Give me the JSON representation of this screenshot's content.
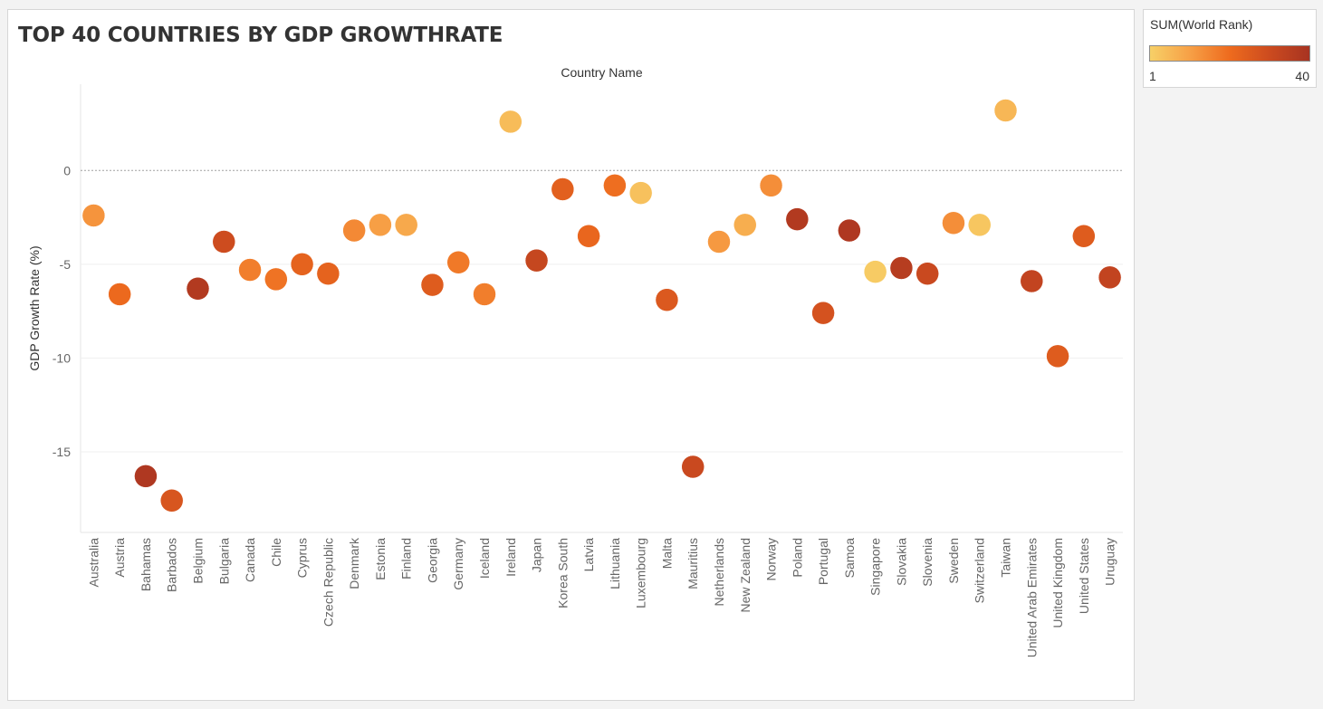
{
  "chart_data": {
    "type": "scatter",
    "title": "TOP 40 COUNTRIES BY GDP GROWTHRATE",
    "column_header": "Country Name",
    "ylabel": "GDP Growth Rate (%)",
    "ylim": [
      -19.3,
      4.6
    ],
    "yticks": [
      0,
      -5,
      -10,
      -15
    ],
    "categories": [
      "Australia",
      "Austria",
      "Bahamas",
      "Barbados",
      "Belgium",
      "Bulgaria",
      "Canada",
      "Chile",
      "Cyprus",
      "Czech Republic",
      "Denmark",
      "Estonia",
      "Finland",
      "Georgia",
      "Germany",
      "Iceland",
      "Ireland",
      "Japan",
      "Korea South",
      "Latvia",
      "Lithuania",
      "Luxembourg",
      "Malta",
      "Mauritius",
      "Netherlands",
      "New Zealand",
      "Norway",
      "Poland",
      "Portugal",
      "Samoa",
      "Singapore",
      "Slovakia",
      "Slovenia",
      "Sweden",
      "Switzerland",
      "Taiwan",
      "United Arab Emirates",
      "United Kingdom",
      "United States",
      "Uruguay"
    ],
    "values": [
      -2.4,
      -6.6,
      -16.3,
      -17.6,
      -6.3,
      -3.8,
      -5.3,
      -5.8,
      -5.0,
      -5.5,
      -3.2,
      -2.9,
      -2.9,
      -6.1,
      -4.9,
      -6.6,
      2.6,
      -4.8,
      -1.0,
      -3.5,
      -0.8,
      -1.2,
      -6.9,
      -15.8,
      -3.8,
      -2.9,
      -0.8,
      -2.6,
      -7.6,
      -3.2,
      -5.4,
      -5.2,
      -5.5,
      -2.8,
      -2.9,
      3.2,
      -5.9,
      -9.9,
      -3.5,
      -5.7
    ],
    "color_values": [
      13,
      21,
      38,
      27,
      37,
      30,
      17,
      19,
      23,
      23,
      15,
      11,
      9,
      25,
      18,
      17,
      5,
      32,
      24,
      22,
      20,
      4,
      26,
      31,
      12,
      8,
      14,
      37,
      28,
      38,
      2,
      36,
      31,
      14,
      3,
      6,
      33,
      25,
      25,
      33
    ],
    "color_field": "SUM(World Rank)",
    "color_range": [
      1,
      40
    ],
    "colors": [
      "#f7d067",
      "#f7a046",
      "#ee6b1e",
      "#cc4b1f",
      "#a73321"
    ],
    "reference_line": 0
  },
  "legend": {
    "title": "SUM(World Rank)",
    "min_label": "1",
    "max_label": "40"
  }
}
